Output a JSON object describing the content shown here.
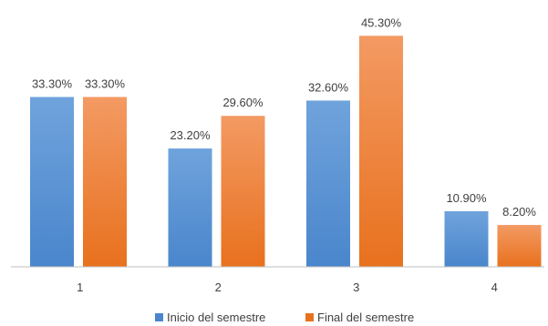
{
  "chart_data": {
    "type": "bar",
    "categories": [
      "1",
      "2",
      "3",
      "4"
    ],
    "series": [
      {
        "name": "Inicio del semestre",
        "values": [
          33.3,
          23.2,
          32.6,
          10.9
        ],
        "labels": [
          "33.30%",
          "23.20%",
          "32.60%",
          "10.90%"
        ],
        "color_top": "#6FA3DC",
        "color_bottom": "#4A86CC"
      },
      {
        "name": "Final del semestre",
        "values": [
          33.3,
          29.6,
          45.3,
          8.2
        ],
        "labels": [
          "33.30%",
          "29.60%",
          "45.30%",
          "8.20%"
        ],
        "color_top": "#F39A63",
        "color_bottom": "#E8711E"
      }
    ],
    "ylim": [
      0,
      50
    ],
    "value_unit": "%",
    "grid": false,
    "legend": "bottom",
    "axis_color": "#BFBFBF"
  }
}
